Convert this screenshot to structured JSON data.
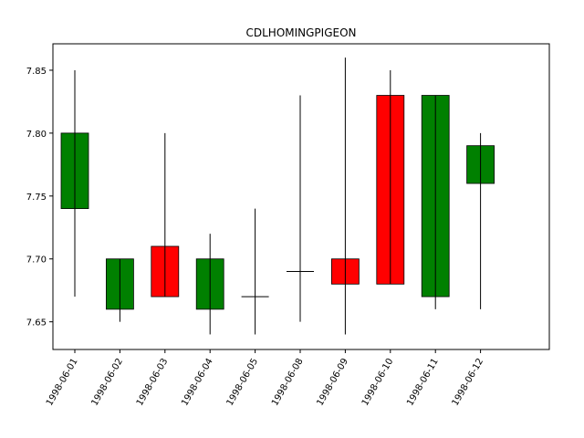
{
  "chart_data": {
    "type": "candlestick",
    "title": "CDLHOMINGPIGEON",
    "xlabel": "",
    "ylabel": "",
    "ylim": [
      7.628,
      7.871
    ],
    "y_ticks": [
      "7.65",
      "7.70",
      "7.75",
      "7.80",
      "7.85"
    ],
    "y_tick_values": [
      7.65,
      7.7,
      7.75,
      7.8,
      7.85
    ],
    "categories": [
      "1998-06-01",
      "1998-06-02",
      "1998-06-03",
      "1998-06-04",
      "1998-06-05",
      "1998-06-08",
      "1998-06-09",
      "1998-06-10",
      "1998-06-11",
      "1998-06-12"
    ],
    "candles": [
      {
        "date": "1998-06-01",
        "open": 7.74,
        "high": 7.85,
        "low": 7.67,
        "close": 7.8
      },
      {
        "date": "1998-06-02",
        "open": 7.66,
        "high": 7.7,
        "low": 7.65,
        "close": 7.7
      },
      {
        "date": "1998-06-03",
        "open": 7.71,
        "high": 7.8,
        "low": 7.67,
        "close": 7.67
      },
      {
        "date": "1998-06-04",
        "open": 7.66,
        "high": 7.72,
        "low": 7.64,
        "close": 7.7
      },
      {
        "date": "1998-06-05",
        "open": 7.67,
        "high": 7.74,
        "low": 7.64,
        "close": 7.67
      },
      {
        "date": "1998-06-08",
        "open": 7.69,
        "high": 7.83,
        "low": 7.65,
        "close": 7.69
      },
      {
        "date": "1998-06-09",
        "open": 7.7,
        "high": 7.86,
        "low": 7.64,
        "close": 7.68
      },
      {
        "date": "1998-06-10",
        "open": 7.83,
        "high": 7.85,
        "low": 7.68,
        "close": 7.68
      },
      {
        "date": "1998-06-11",
        "open": 7.67,
        "high": 7.83,
        "low": 7.66,
        "close": 7.83
      },
      {
        "date": "1998-06-12",
        "open": 7.76,
        "high": 7.8,
        "low": 7.66,
        "close": 7.79
      }
    ],
    "colors": {
      "up": "#008000",
      "down": "#ff0000",
      "edge": "#000000"
    },
    "grid": false,
    "legend": "none"
  }
}
